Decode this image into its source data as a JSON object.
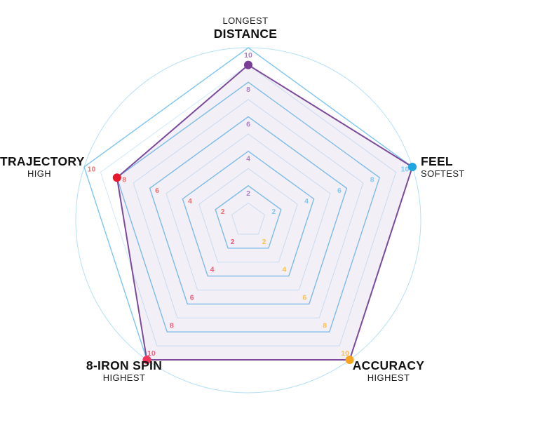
{
  "chart_data": {
    "type": "radar",
    "shape": "pentagon",
    "value_min": 0,
    "value_max": 10,
    "grid_rings": 10,
    "tick_values": [
      2,
      4,
      6,
      8,
      10
    ],
    "outer_circle": true,
    "legend": "none",
    "axes": [
      {
        "id": "distance",
        "label": "DISTANCE",
        "qualifier": "LONGEST",
        "qualifier_position": "above",
        "value": 9,
        "dot_color": "#7a3e98",
        "tick_color": "#ab7fc4"
      },
      {
        "id": "feel",
        "label": "FEEL",
        "qualifier": "SOFTEST",
        "qualifier_position": "below",
        "value": 10,
        "dot_color": "#1ea6e2",
        "tick_color": "#82c7f0"
      },
      {
        "id": "accuracy",
        "label": "ACCURACY",
        "qualifier": "HIGHEST",
        "qualifier_position": "below",
        "value": 10,
        "dot_color": "#f9a61f",
        "tick_color": "#fbc14e"
      },
      {
        "id": "spin",
        "label": "8-IRON SPIN",
        "qualifier": "HIGHEST",
        "qualifier_position": "below",
        "value": 10,
        "dot_color": "#f5365c",
        "tick_color": "#f4587a"
      },
      {
        "id": "trajectory",
        "label": "TRAJECTORY",
        "qualifier": "HIGH",
        "qualifier_position": "below",
        "value": 8,
        "dot_color": "#e7182d",
        "tick_color": "#f37272"
      }
    ],
    "series_style": {
      "stroke_color": "#7b4a9b",
      "fill_color": "rgba(123,74,155,0.09)"
    },
    "grid_colors": {
      "major_ring": "#7dc6f0",
      "minor_ring": "#cfe9f9",
      "outer_circle": "#b5e0f6"
    }
  }
}
